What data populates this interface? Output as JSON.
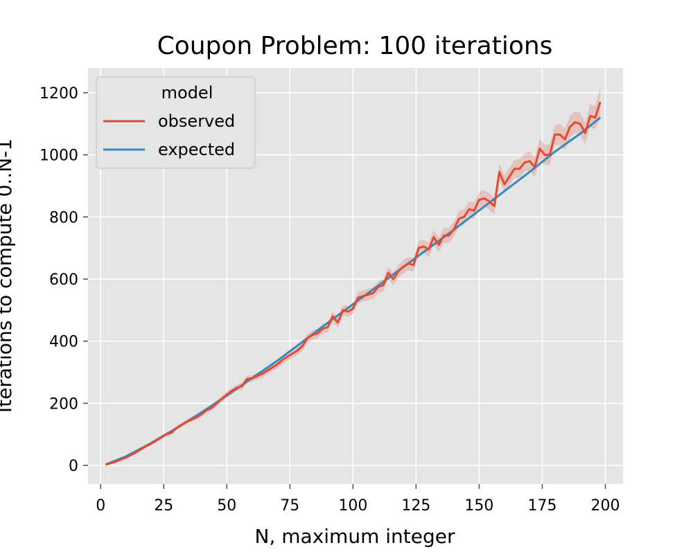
{
  "chart_data": {
    "type": "line",
    "title": "Coupon Problem: 100 iterations",
    "xlabel": "N, maximum integer",
    "ylabel": "Iterations to compute 0..N-1",
    "xlim": [
      -5,
      207
    ],
    "ylim": [
      -60,
      1280
    ],
    "xticks": [
      0,
      25,
      50,
      75,
      100,
      125,
      150,
      175,
      200
    ],
    "yticks": [
      0,
      200,
      400,
      600,
      800,
      1000,
      1200
    ],
    "grid": true,
    "legend": {
      "title": "model",
      "placement": "top-left",
      "entries": [
        "observed",
        "expected"
      ]
    },
    "colors": {
      "observed": "#e24a33",
      "expected": "#348abd",
      "background": "#e5e5e5",
      "grid": "#ffffff"
    },
    "series": [
      {
        "name": "observed",
        "x": [
          2,
          6,
          10,
          14,
          18,
          20,
          24,
          26,
          28,
          30,
          34,
          38,
          40,
          42,
          44,
          46,
          50,
          52,
          54,
          56,
          58,
          60,
          64,
          66,
          68,
          70,
          72,
          74,
          76,
          78,
          80,
          82,
          84,
          86,
          88,
          90,
          92,
          94,
          96,
          98,
          100,
          102,
          104,
          106,
          108,
          110,
          112,
          114,
          116,
          118,
          120,
          122,
          124,
          126,
          128,
          130,
          132,
          134,
          136,
          138,
          140,
          142,
          144,
          146,
          148,
          150,
          152,
          154,
          156,
          158,
          160,
          162,
          164,
          166,
          168,
          170,
          172,
          174,
          176,
          178,
          180,
          182,
          184,
          186,
          188,
          190,
          192,
          194,
          196,
          198
        ],
        "values": [
          2,
          12,
          25,
          42,
          62,
          70,
          90,
          100,
          105,
          120,
          140,
          155,
          165,
          178,
          185,
          200,
          228,
          240,
          250,
          255,
          278,
          280,
          295,
          305,
          315,
          325,
          340,
          350,
          360,
          370,
          385,
          410,
          420,
          425,
          440,
          445,
          480,
          460,
          500,
          495,
          505,
          540,
          545,
          550,
          555,
          575,
          580,
          620,
          600,
          625,
          640,
          650,
          645,
          700,
          705,
          695,
          735,
          710,
          740,
          740,
          760,
          795,
          800,
          825,
          820,
          855,
          860,
          850,
          835,
          945,
          905,
          930,
          955,
          955,
          975,
          980,
          960,
          1020,
          1000,
          1000,
          1065,
          1065,
          1050,
          1090,
          1105,
          1100,
          1070,
          1125,
          1120,
          1170
        ],
        "spread": [
          1,
          2,
          3,
          4,
          5,
          5,
          6,
          6,
          6,
          7,
          7,
          8,
          8,
          8,
          9,
          9,
          10,
          10,
          10,
          11,
          11,
          11,
          12,
          12,
          12,
          13,
          13,
          13,
          14,
          14,
          14,
          15,
          15,
          15,
          16,
          16,
          16,
          17,
          17,
          17,
          18,
          18,
          18,
          19,
          19,
          19,
          20,
          20,
          20,
          21,
          21,
          21,
          22,
          22,
          22,
          23,
          23,
          23,
          24,
          24,
          24,
          25,
          25,
          25,
          26,
          26,
          26,
          27,
          27,
          28,
          28,
          29,
          29,
          30,
          30,
          31,
          31,
          32,
          32,
          33,
          33,
          34,
          34,
          35,
          35,
          36,
          36,
          37,
          38,
          50
        ]
      },
      {
        "name": "expected",
        "x": [
          2,
          10,
          20,
          30,
          40,
          50,
          60,
          70,
          80,
          90,
          100,
          110,
          120,
          130,
          140,
          150,
          160,
          170,
          180,
          190,
          198
        ],
        "values": [
          3,
          29,
          72,
          120,
          171,
          225,
          281,
          337,
          398,
          459,
          519,
          579,
          639,
          699,
          759,
          821,
          883,
          945,
          1010,
          1068,
          1120
        ]
      }
    ]
  }
}
